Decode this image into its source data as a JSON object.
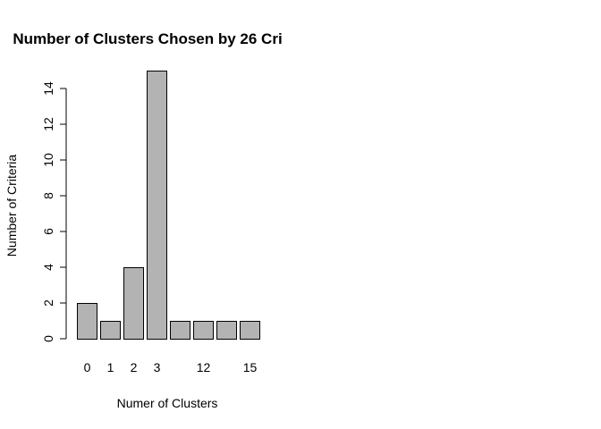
{
  "chart_data": {
    "type": "bar",
    "title": "Number of Clusters Chosen by 26 Cri",
    "xlabel": "Numer of Clusters",
    "ylabel": "Number of Criteria",
    "categories": [
      "0",
      "1",
      "2",
      "3",
      "",
      "12",
      "",
      "15"
    ],
    "values": [
      2,
      1,
      4,
      15,
      1,
      1,
      1,
      1
    ],
    "y_ticks": [
      "0",
      "2",
      "4",
      "6",
      "8",
      "10",
      "12",
      "14"
    ],
    "ylim": [
      0,
      15
    ],
    "grid": false,
    "colors": {
      "bar_fill": "#b3b3b3",
      "bar_stroke": "#000000"
    }
  }
}
